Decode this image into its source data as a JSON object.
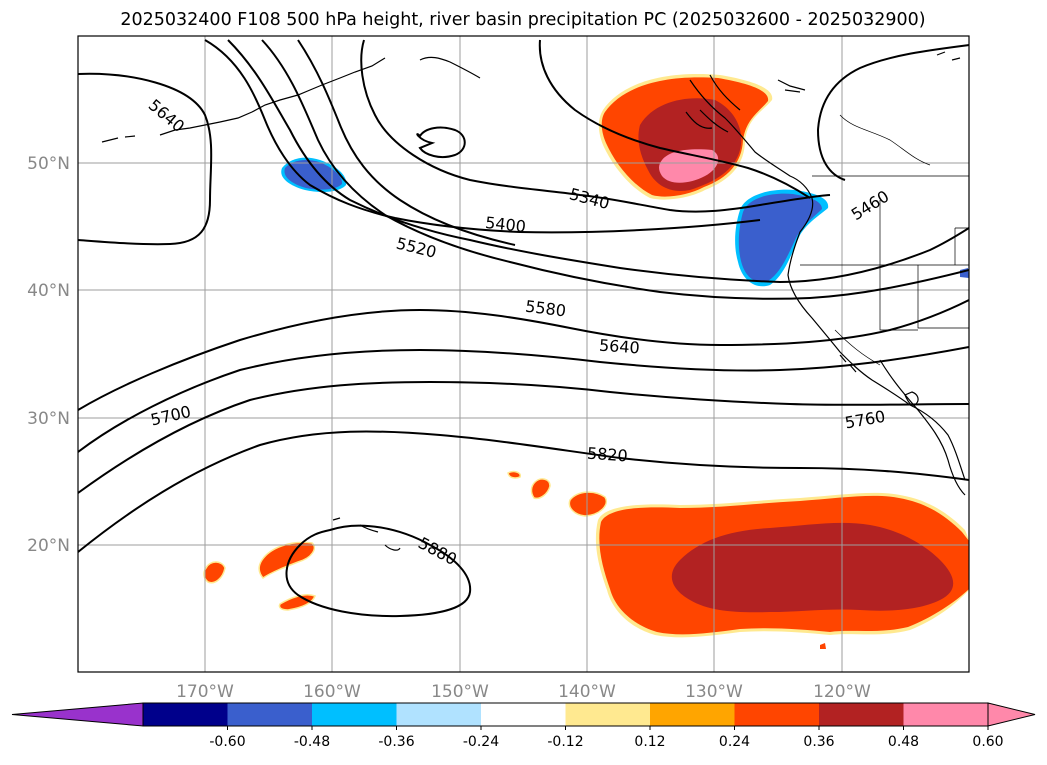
{
  "title": "2025032400 F108 500 hPa height, river basin precipitation PC (2025032600 - 2025032900)",
  "map": {
    "lat_labels": [
      "50°N",
      "40°N",
      "30°N",
      "20°N"
    ],
    "lon_labels": [
      "170°W",
      "160°W",
      "150°W",
      "140°W",
      "130°W",
      "120°W"
    ],
    "contour_labels": [
      "5640",
      "5340",
      "5400",
      "5520",
      "5460",
      "5580",
      "5640",
      "5700",
      "5760",
      "5820",
      "5880"
    ]
  },
  "colorbar": {
    "colors": [
      "#9932cc",
      "#00008b",
      "#3a5fcd",
      "#00bfff",
      "#b0e2ff",
      "#ffffff",
      "#ffe990",
      "#ffa500",
      "#ff4500",
      "#b22222",
      "#ff88aa",
      "#ff88aa"
    ],
    "tick_labels": [
      "-0.60",
      "-0.48",
      "-0.36",
      "-0.24",
      "-0.12",
      "0.12",
      "0.24",
      "0.36",
      "0.48",
      "0.60"
    ]
  }
}
